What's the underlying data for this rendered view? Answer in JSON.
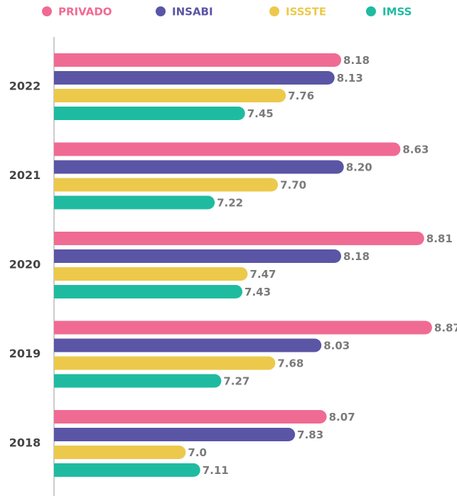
{
  "chart_data": {
    "type": "bar",
    "orientation": "horizontal",
    "categories": [
      "2022",
      "2021",
      "2020",
      "2019",
      "2018"
    ],
    "xlim": [
      6,
      9
    ],
    "series": [
      {
        "name": "PRIVADO",
        "color": "#f06b93",
        "values": [
          8.18,
          8.63,
          8.81,
          8.87,
          8.07
        ],
        "value_labels": [
          "8.18",
          "8.63",
          "8.81",
          "8.87",
          "8.07"
        ]
      },
      {
        "name": "INSABI",
        "color": "#5a55a5",
        "values": [
          8.13,
          8.2,
          8.18,
          8.03,
          7.83
        ],
        "value_labels": [
          "8.13",
          "8.20",
          "8.18",
          "8.03",
          "7.83"
        ]
      },
      {
        "name": "ISSSTE",
        "color": "#ecc94b",
        "values": [
          7.76,
          7.7,
          7.47,
          7.68,
          7.0
        ],
        "value_labels": [
          "7.76",
          "7.70",
          "7.47",
          "7.68",
          "7.0"
        ]
      },
      {
        "name": "IMSS",
        "color": "#1fbba0",
        "values": [
          7.45,
          7.22,
          7.43,
          7.27,
          7.11
        ],
        "value_labels": [
          "7.45",
          "7.22",
          "7.43",
          "7.27",
          "7.11"
        ]
      }
    ],
    "legend": "top"
  }
}
